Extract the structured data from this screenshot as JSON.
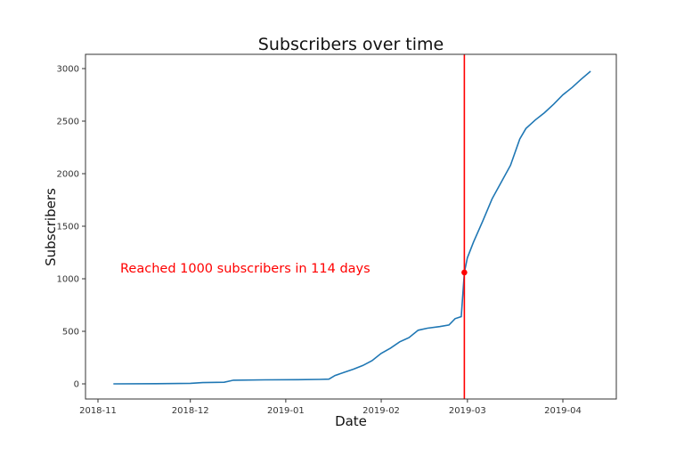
{
  "chart_data": {
    "type": "line",
    "title": "Subscribers over time",
    "xlabel": "Date",
    "ylabel": "Subscribers",
    "ylim": [
      -150,
      3130
    ],
    "xlim": [
      "2018-10-29",
      "2019-04-17"
    ],
    "grid": false,
    "legend": null,
    "x_tick_labels": [
      "2018-11",
      "2018-12",
      "2019-01",
      "2019-02",
      "2019-03",
      "2019-04"
    ],
    "y_tick_labels": [
      "0",
      "500",
      "1000",
      "1500",
      "2000",
      "2500",
      "3000"
    ],
    "y_ticks": [
      0,
      500,
      1000,
      1500,
      2000,
      2500,
      3000
    ],
    "line_color": "#1f77b4",
    "series": [
      {
        "name": "Subscribers",
        "x": [
          "2018-11-06",
          "2018-11-20",
          "2018-12-01",
          "2018-12-05",
          "2018-12-12",
          "2018-12-15",
          "2018-12-25",
          "2019-01-05",
          "2019-01-12",
          "2019-01-15",
          "2019-01-17",
          "2019-01-20",
          "2019-01-23",
          "2019-01-26",
          "2019-01-29",
          "2019-02-01",
          "2019-02-04",
          "2019-02-07",
          "2019-02-10",
          "2019-02-13",
          "2019-02-16",
          "2019-02-20",
          "2019-02-23",
          "2019-02-25",
          "2019-02-27",
          "2019-02-28",
          "2019-03-01",
          "2019-03-03",
          "2019-03-06",
          "2019-03-09",
          "2019-03-12",
          "2019-03-15",
          "2019-03-18",
          "2019-03-20",
          "2019-03-23",
          "2019-03-26",
          "2019-03-29",
          "2019-04-01",
          "2019-04-04",
          "2019-04-07",
          "2019-04-10"
        ],
        "values": [
          0,
          2,
          5,
          12,
          15,
          35,
          38,
          40,
          42,
          45,
          80,
          110,
          140,
          175,
          220,
          290,
          340,
          400,
          440,
          510,
          530,
          545,
          560,
          620,
          640,
          1060,
          1200,
          1350,
          1550,
          1760,
          1920,
          2080,
          2330,
          2430,
          2510,
          2580,
          2660,
          2750,
          2820,
          2900,
          2975
        ]
      }
    ],
    "annotations": [
      {
        "type": "vline",
        "x": "2019-02-28",
        "color": "#ff0000"
      },
      {
        "type": "point",
        "x": "2019-02-28",
        "y": 1060,
        "color": "#ff0000"
      },
      {
        "type": "text",
        "text": "Reached 1000 subscribers in 114 days",
        "color": "#ff0000",
        "x": "2018-11-10",
        "y": 1080
      }
    ]
  }
}
